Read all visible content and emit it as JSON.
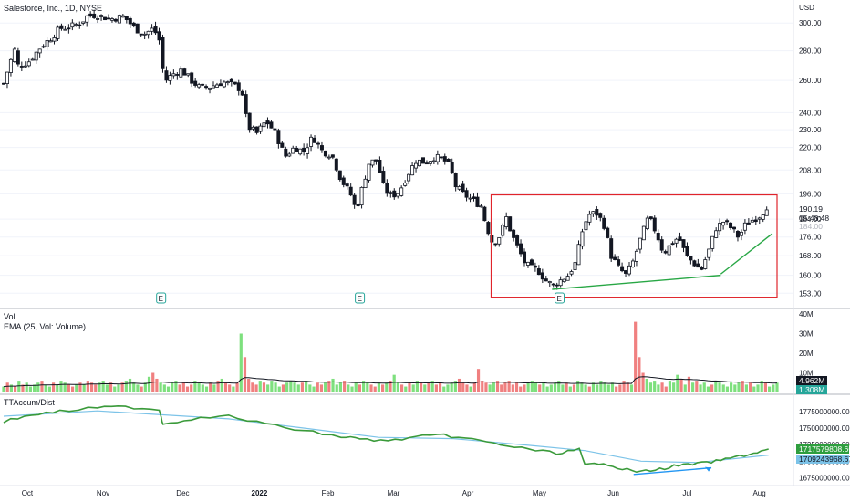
{
  "header": {
    "symbol_title": "Salesforce, Inc., 1D, NYSE",
    "currency": "USD"
  },
  "volume_pane": {
    "title": "Vol",
    "ema_label": "EMA (25, Vol: Volume)",
    "axis_ticks": [
      "40M",
      "30M",
      "20M",
      "10M"
    ],
    "vol_tag": "4.962M",
    "ema_tag": "1.308M"
  },
  "tt_pane": {
    "title": "TTAccum/Dist",
    "axis_ticks": [
      "1775000000.00",
      "1750000000.00",
      "1725000000.00",
      "1700000000.00",
      "1675000000.00"
    ],
    "value_tag": "1717579808.66",
    "signal_tag": "1709243968.67"
  },
  "price_tags": {
    "last_price": "190.19",
    "countdown": "05:48:48",
    "hidden_level": "184.00"
  },
  "earnings_markers": [
    {
      "label": "E"
    },
    {
      "label": "E"
    },
    {
      "label": "E"
    }
  ],
  "colors": {
    "up": "#26a69a",
    "down": "#131722",
    "vol_up": "#7ee07e",
    "vol_down": "#f08080",
    "ema": "#131722",
    "accum": "#3a9a3a",
    "signal": "#7cc3e8",
    "highlight_box": "#e0242b",
    "trend_green": "#28a745",
    "trend_blue": "#2196f3"
  },
  "chart_data": {
    "type": "candlestick",
    "title": "Salesforce, Inc., 1D, NYSE",
    "x_ticks": [
      "Oct",
      "Nov",
      "Dec",
      "2022",
      "Feb",
      "Mar",
      "Apr",
      "May",
      "Jun",
      "Jul",
      "Aug"
    ],
    "y_ticks": [
      300,
      280,
      260,
      240,
      230,
      220,
      208,
      196,
      184,
      176,
      168,
      160,
      153
    ],
    "y_scale": "log",
    "ylim": [
      150,
      312
    ],
    "last_price": 190.19,
    "close_path": [
      {
        "t": 0,
        "v": 258
      },
      {
        "t": 0.9,
        "v": 276
      },
      {
        "t": 1.0,
        "v": 285
      },
      {
        "t": 1.5,
        "v": 270
      },
      {
        "t": 2.6,
        "v": 272
      },
      {
        "t": 3.0,
        "v": 275
      },
      {
        "t": 4.0,
        "v": 283
      },
      {
        "t": 5.2,
        "v": 290
      },
      {
        "t": 6.0,
        "v": 296
      },
      {
        "t": 7.0,
        "v": 297
      },
      {
        "t": 8.2,
        "v": 300
      },
      {
        "t": 9.0,
        "v": 306
      },
      {
        "t": 10.0,
        "v": 306
      },
      {
        "t": 11.4,
        "v": 303
      },
      {
        "t": 12.8,
        "v": 305
      },
      {
        "t": 14.0,
        "v": 296
      },
      {
        "t": 15.0,
        "v": 292
      },
      {
        "t": 16.0,
        "v": 296
      },
      {
        "t": 16.7,
        "v": 286
      },
      {
        "t": 17.1,
        "v": 259
      },
      {
        "t": 18.0,
        "v": 264
      },
      {
        "t": 19.0,
        "v": 267
      },
      {
        "t": 20.0,
        "v": 260
      },
      {
        "t": 21.0,
        "v": 255
      },
      {
        "t": 22.0,
        "v": 256
      },
      {
        "t": 23.4,
        "v": 259
      },
      {
        "t": 24.5,
        "v": 257
      },
      {
        "t": 25.4,
        "v": 254
      },
      {
        "t": 26.0,
        "v": 232
      },
      {
        "t": 27.0,
        "v": 228
      },
      {
        "t": 28.0,
        "v": 235
      },
      {
        "t": 29.0,
        "v": 228
      },
      {
        "t": 30.0,
        "v": 215
      },
      {
        "t": 31.0,
        "v": 220
      },
      {
        "t": 32.0,
        "v": 218
      },
      {
        "t": 33.0,
        "v": 226
      },
      {
        "t": 34.0,
        "v": 218
      },
      {
        "t": 35.0,
        "v": 216
      },
      {
        "t": 36.0,
        "v": 203
      },
      {
        "t": 37.0,
        "v": 196
      },
      {
        "t": 37.6,
        "v": 188
      },
      {
        "t": 38.3,
        "v": 200
      },
      {
        "t": 39.0,
        "v": 212
      },
      {
        "t": 39.8,
        "v": 213
      },
      {
        "t": 40.6,
        "v": 198
      },
      {
        "t": 41.4,
        "v": 195
      },
      {
        "t": 42.2,
        "v": 197
      },
      {
        "t": 43.0,
        "v": 205
      },
      {
        "t": 44.0,
        "v": 213
      },
      {
        "t": 45.0,
        "v": 212
      },
      {
        "t": 46.0,
        "v": 215
      },
      {
        "t": 47.0,
        "v": 213
      },
      {
        "t": 47.6,
        "v": 210
      },
      {
        "t": 48.2,
        "v": 200
      },
      {
        "t": 49.0,
        "v": 196
      },
      {
        "t": 50.0,
        "v": 193
      },
      {
        "t": 51.0,
        "v": 190
      },
      {
        "t": 51.4,
        "v": 182
      },
      {
        "t": 52.2,
        "v": 173
      },
      {
        "t": 53.0,
        "v": 177
      },
      {
        "t": 53.6,
        "v": 185
      },
      {
        "t": 54.2,
        "v": 177
      },
      {
        "t": 55.0,
        "v": 170
      },
      {
        "t": 55.6,
        "v": 165
      },
      {
        "t": 56.2,
        "v": 163
      },
      {
        "t": 57.0,
        "v": 162
      },
      {
        "t": 57.8,
        "v": 158
      },
      {
        "t": 58.6,
        "v": 156
      },
      {
        "t": 59.4,
        "v": 158
      },
      {
        "t": 60.2,
        "v": 160
      },
      {
        "t": 61.0,
        "v": 165
      },
      {
        "t": 61.8,
        "v": 180
      },
      {
        "t": 62.4,
        "v": 186
      },
      {
        "t": 63.2,
        "v": 187
      },
      {
        "t": 64.0,
        "v": 182
      },
      {
        "t": 64.8,
        "v": 168
      },
      {
        "t": 65.6,
        "v": 163
      },
      {
        "t": 66.4,
        "v": 160
      },
      {
        "t": 67.2,
        "v": 166
      },
      {
        "t": 68.0,
        "v": 176
      },
      {
        "t": 68.8,
        "v": 185
      },
      {
        "t": 69.6,
        "v": 178
      },
      {
        "t": 70.4,
        "v": 169
      },
      {
        "t": 71.2,
        "v": 173
      },
      {
        "t": 72.0,
        "v": 176
      },
      {
        "t": 72.8,
        "v": 168
      },
      {
        "t": 73.6,
        "v": 165
      },
      {
        "t": 74.4,
        "v": 162
      },
      {
        "t": 75.2,
        "v": 170
      },
      {
        "t": 76.0,
        "v": 180
      },
      {
        "t": 76.8,
        "v": 183
      },
      {
        "t": 77.6,
        "v": 180
      },
      {
        "t": 78.4,
        "v": 176
      },
      {
        "t": 79.2,
        "v": 182
      },
      {
        "t": 80.0,
        "v": 184
      },
      {
        "t": 80.8,
        "v": 186
      },
      {
        "t": 81.4,
        "v": 190
      }
    ],
    "annotations": [
      {
        "kind": "rectangle",
        "t0": 52.0,
        "t1": 82.5,
        "v0": 151.5,
        "v1": 195.5,
        "color": "#e0242b"
      },
      {
        "kind": "trendline",
        "t0": 58.5,
        "v0": 154.5,
        "t1": 76.5,
        "v1": 160.0,
        "color": "#28a745"
      },
      {
        "kind": "trendline",
        "t0": 76.5,
        "v0": 160.5,
        "t1": 82.0,
        "v1": 177.5,
        "color": "#28a745"
      }
    ],
    "volume": {
      "ylim": [
        0,
        40
      ],
      "units": "M",
      "values": [
        3,
        5,
        4,
        3,
        6,
        4,
        5,
        3,
        4,
        5,
        6,
        4,
        3,
        5,
        4,
        6,
        5,
        4,
        3,
        4,
        5,
        4,
        6,
        5,
        4,
        5,
        6,
        4,
        5,
        3,
        4,
        5,
        6,
        7,
        5,
        4,
        3,
        5,
        8,
        10,
        7,
        5,
        4,
        3,
        5,
        6,
        4,
        5,
        3,
        4,
        6,
        5,
        4,
        3,
        5,
        4,
        6,
        7,
        5,
        4,
        3,
        5,
        30,
        18,
        7,
        5,
        4,
        6,
        5,
        4,
        6,
        5,
        3,
        4,
        5,
        6,
        5,
        4,
        5,
        6,
        4,
        3,
        5,
        4,
        5,
        6,
        7,
        4,
        5,
        6,
        4,
        3,
        5,
        4,
        6,
        5,
        4,
        3,
        5,
        4,
        5,
        6,
        9,
        5,
        4,
        3,
        5,
        4,
        6,
        5,
        4,
        5,
        6,
        4,
        5,
        3,
        4,
        5,
        6,
        7,
        5,
        4,
        3,
        5,
        12,
        6,
        5,
        4,
        5,
        6,
        4,
        5,
        6,
        4,
        5,
        3,
        4,
        5,
        6,
        5,
        4,
        5,
        3,
        4,
        5,
        6,
        4,
        5,
        3,
        4,
        6,
        5,
        4,
        3,
        5,
        4,
        6,
        5,
        4,
        5,
        3,
        4,
        6,
        5,
        4,
        36,
        18,
        10,
        7,
        5,
        6,
        4,
        5,
        3,
        6,
        5,
        9,
        7,
        4,
        8,
        5,
        6,
        4,
        5,
        3,
        4,
        6,
        5,
        4,
        3,
        5,
        4,
        5,
        6,
        4,
        5,
        3,
        4,
        6,
        5,
        3,
        4,
        5
      ]
    },
    "accum_dist": {
      "ylim": [
        1666000000,
        1790000000
      ],
      "path": [
        {
          "t": 0,
          "v": 1760000000
        },
        {
          "t": 3,
          "v": 1770000000
        },
        {
          "t": 6,
          "v": 1775000000
        },
        {
          "t": 10,
          "v": 1781000000
        },
        {
          "t": 13,
          "v": 1782000000
        },
        {
          "t": 16.6,
          "v": 1778000000
        },
        {
          "t": 17.0,
          "v": 1756000000
        },
        {
          "t": 20,
          "v": 1764000000
        },
        {
          "t": 24,
          "v": 1768000000
        },
        {
          "t": 28,
          "v": 1756000000
        },
        {
          "t": 32,
          "v": 1746000000
        },
        {
          "t": 36,
          "v": 1737000000
        },
        {
          "t": 38,
          "v": 1734000000
        },
        {
          "t": 41,
          "v": 1730000000
        },
        {
          "t": 44,
          "v": 1737000000
        },
        {
          "t": 47,
          "v": 1739000000
        },
        {
          "t": 50,
          "v": 1733000000
        },
        {
          "t": 53,
          "v": 1725000000
        },
        {
          "t": 56,
          "v": 1718000000
        },
        {
          "t": 59,
          "v": 1712000000
        },
        {
          "t": 61.4,
          "v": 1718000000
        },
        {
          "t": 62.0,
          "v": 1694000000
        },
        {
          "t": 64,
          "v": 1698000000
        },
        {
          "t": 66,
          "v": 1688000000
        },
        {
          "t": 68,
          "v": 1684000000
        },
        {
          "t": 70,
          "v": 1688000000
        },
        {
          "t": 72,
          "v": 1694000000
        },
        {
          "t": 74,
          "v": 1696000000
        },
        {
          "t": 76,
          "v": 1700000000
        },
        {
          "t": 78,
          "v": 1706000000
        },
        {
          "t": 80,
          "v": 1712000000
        },
        {
          "t": 81.6,
          "v": 1717579808.66
        }
      ],
      "signal_path": [
        {
          "t": 0,
          "v": 1768000000
        },
        {
          "t": 10,
          "v": 1776000000
        },
        {
          "t": 17,
          "v": 1770000000
        },
        {
          "t": 24,
          "v": 1764000000
        },
        {
          "t": 32,
          "v": 1750000000
        },
        {
          "t": 40,
          "v": 1736000000
        },
        {
          "t": 48,
          "v": 1734000000
        },
        {
          "t": 56,
          "v": 1724000000
        },
        {
          "t": 62,
          "v": 1716000000
        },
        {
          "t": 68,
          "v": 1700000000
        },
        {
          "t": 74,
          "v": 1698000000
        },
        {
          "t": 81.6,
          "v": 1709243968.67
        }
      ],
      "trendline": {
        "t0": 67.2,
        "v0": 1680000000,
        "t1": 75.5,
        "v1": 1690000000
      }
    }
  }
}
